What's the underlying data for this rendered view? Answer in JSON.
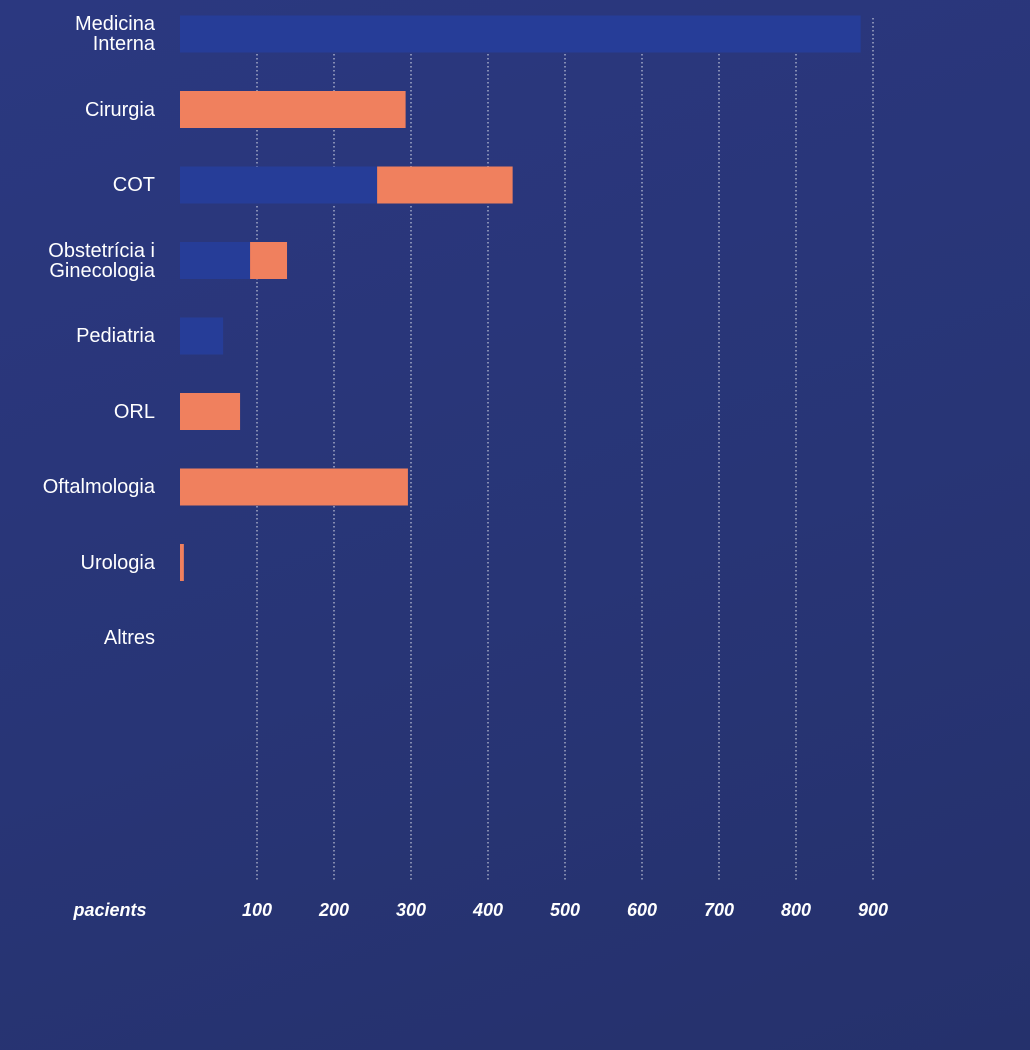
{
  "chart_data": {
    "type": "bar",
    "orientation": "horizontal",
    "stacked": true,
    "categories": [
      "Medicina\nInterna",
      "Cirurgia",
      "COT",
      "Obstetrícia i\nGinecologia",
      "Pediatria",
      "ORL",
      "Oftalmologia",
      "Urologia",
      "Altres"
    ],
    "series": [
      {
        "color": "#263d98",
        "values": [
          884,
          0,
          256,
          91,
          56,
          0,
          0,
          0,
          0
        ]
      },
      {
        "color": "#f0805e",
        "values": [
          0,
          293,
          176,
          48,
          0,
          78,
          296,
          5,
          0
        ]
      }
    ],
    "x_label": "pacients",
    "xlim": [
      0,
      1000
    ],
    "xticks": [
      100,
      200,
      300,
      400,
      500,
      600,
      700,
      800,
      900
    ],
    "grid": true
  }
}
